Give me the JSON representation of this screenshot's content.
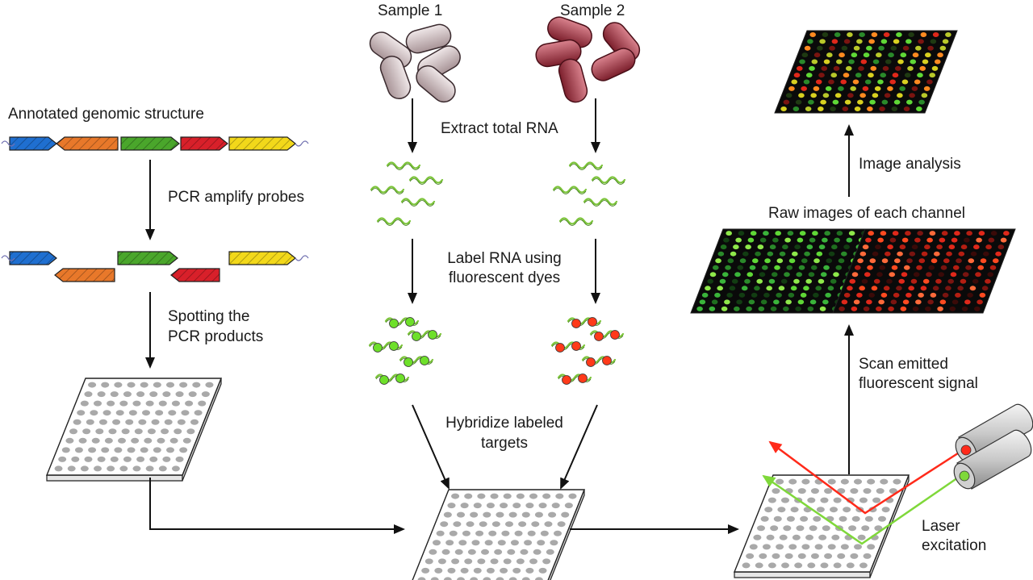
{
  "labels": {
    "sample1": "Sample 1",
    "sample2": "Sample 2",
    "annotated": "Annotated genomic structure",
    "pcr_amplify": "PCR amplify probes",
    "spotting_1": "Spotting the",
    "spotting_2": "PCR products",
    "extract": "Extract total RNA",
    "label_rna_1": "Label RNA using",
    "label_rna_2": "fluorescent dyes",
    "hybridize_1": "Hybridize labeled",
    "hybridize_2": "targets",
    "image_analysis": "Image analysis",
    "raw_images": "Raw images of each channel",
    "scan_1": "Scan emitted",
    "scan_2": "fluorescent signal",
    "laser_1": "Laser",
    "laser_2": "excitation"
  },
  "colors": {
    "gene_blue": "#1f6fd0",
    "gene_orange": "#e8782a",
    "gene_green": "#4aa62b",
    "gene_red": "#d8202a",
    "gene_yellow": "#f2d81a",
    "cell_sample1": "#b9a9ac",
    "cell_sample2": "#9c3a46",
    "rna_strand": "#7cc43a",
    "dye_green": "#6ee02a",
    "dye_red": "#ff3a1a",
    "laser_red": "#ff2a1a",
    "laser_green": "#7fd83a"
  }
}
